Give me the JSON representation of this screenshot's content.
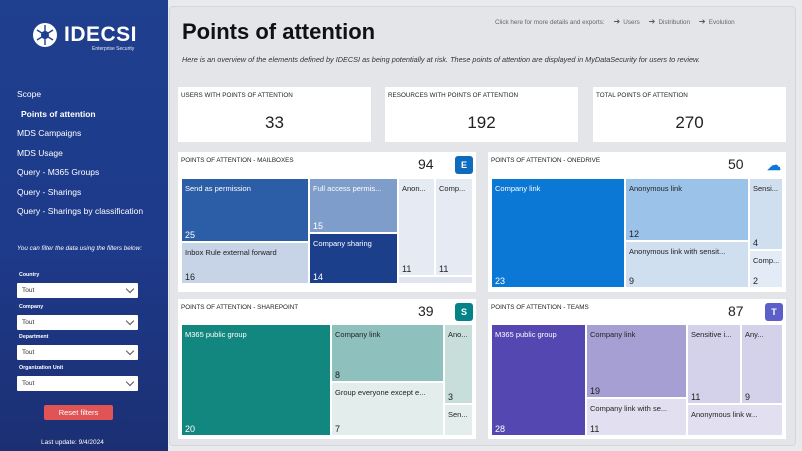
{
  "brand": {
    "name": "IDECSI",
    "tagline": "Enterprise Security"
  },
  "nav": [
    {
      "label": "Scope"
    },
    {
      "label": "Points of attention"
    },
    {
      "label": "MDS Campaigns"
    },
    {
      "label": "MDS Usage"
    },
    {
      "label": "Query - M365 Groups"
    },
    {
      "label": "Query - Sharings"
    },
    {
      "label": "Query - Sharings by classification"
    }
  ],
  "filter_hint": "You can filter the data using the filters below:",
  "filters": [
    {
      "label": "Country",
      "value": "Tout"
    },
    {
      "label": "Company",
      "value": "Tout"
    },
    {
      "label": "Department",
      "value": "Tout"
    },
    {
      "label": "Organization Unit",
      "value": "Tout"
    }
  ],
  "reset_label": "Reset filters",
  "last_update": "Last update:  9/4/2024",
  "header": {
    "title": "Points of attention",
    "subtitle": "Here is an overview of the elements defined by IDECSI as being potentially at risk. These points of attention are displayed in MyDataSecurity for users to review.",
    "exports_label": "Click here for more details and exports:",
    "exports": [
      "Users",
      "Distribution",
      "Evolution"
    ]
  },
  "kpis": [
    {
      "label": "USERS WITH POINTS OF ATTENTION",
      "value": "33"
    },
    {
      "label": "RESOURCES WITH POINTS OF ATTENTION",
      "value": "192"
    },
    {
      "label": "TOTAL POINTS OF ATTENTION",
      "value": "270"
    }
  ],
  "panels": {
    "mailboxes": {
      "label": "POINTS OF ATTENTION - MAILBOXES",
      "total": "94",
      "icon": "exchange-icon",
      "cells": [
        {
          "label": "Send as permission",
          "value": "25"
        },
        {
          "label": "Inbox Rule external forward",
          "value": "16"
        },
        {
          "label": "Full access permis...",
          "value": "15"
        },
        {
          "label": "Company sharing",
          "value": "14"
        },
        {
          "label": "Anon...",
          "value": "11"
        },
        {
          "label": "Comp...",
          "value": "11"
        }
      ]
    },
    "onedrive": {
      "label": "POINTS OF ATTENTION - ONEDRIVE",
      "total": "50",
      "icon": "onedrive-icon",
      "cells": [
        {
          "label": "Company link",
          "value": "23"
        },
        {
          "label": "Anonymous link",
          "value": "12"
        },
        {
          "label": "Anonymous link with sensit...",
          "value": "9"
        },
        {
          "label": "Sensi...",
          "value": "4"
        },
        {
          "label": "Comp...",
          "value": "2"
        }
      ]
    },
    "sharepoint": {
      "label": "POINTS OF ATTENTION - SHAREPOINT",
      "total": "39",
      "icon": "sharepoint-icon",
      "cells": [
        {
          "label": "M365 public group",
          "value": "20"
        },
        {
          "label": "Company link",
          "value": "8"
        },
        {
          "label": "Group everyone except e...",
          "value": "7"
        },
        {
          "label": "Ano...",
          "value": "3"
        },
        {
          "label": "Sen...",
          "value": ""
        }
      ]
    },
    "teams": {
      "label": "POINTS OF ATTENTION - TEAMS",
      "total": "87",
      "icon": "teams-icon",
      "cells": [
        {
          "label": "M365 public group",
          "value": "28"
        },
        {
          "label": "Company link",
          "value": "19"
        },
        {
          "label": "Company link with se...",
          "value": "11"
        },
        {
          "label": "Sensitive i...",
          "value": "11"
        },
        {
          "label": "Anonymous link w...",
          "value": ""
        },
        {
          "label": "Any...",
          "value": "9"
        }
      ]
    }
  }
}
